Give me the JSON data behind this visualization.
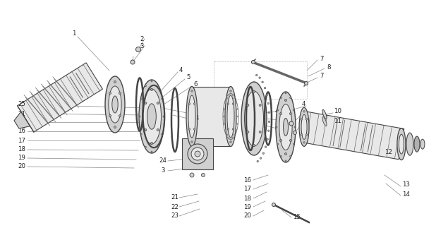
{
  "bg_color": "#f5f5f5",
  "line_color": "#888888",
  "dark_line": "#444444",
  "med_line": "#666666",
  "text_color": "#222222",
  "light_fill": "#e8e8e8",
  "mid_fill": "#d0d0d0",
  "dark_fill": "#b0b0b0",
  "figsize": [
    6.18,
    3.4
  ],
  "dpi": 100
}
